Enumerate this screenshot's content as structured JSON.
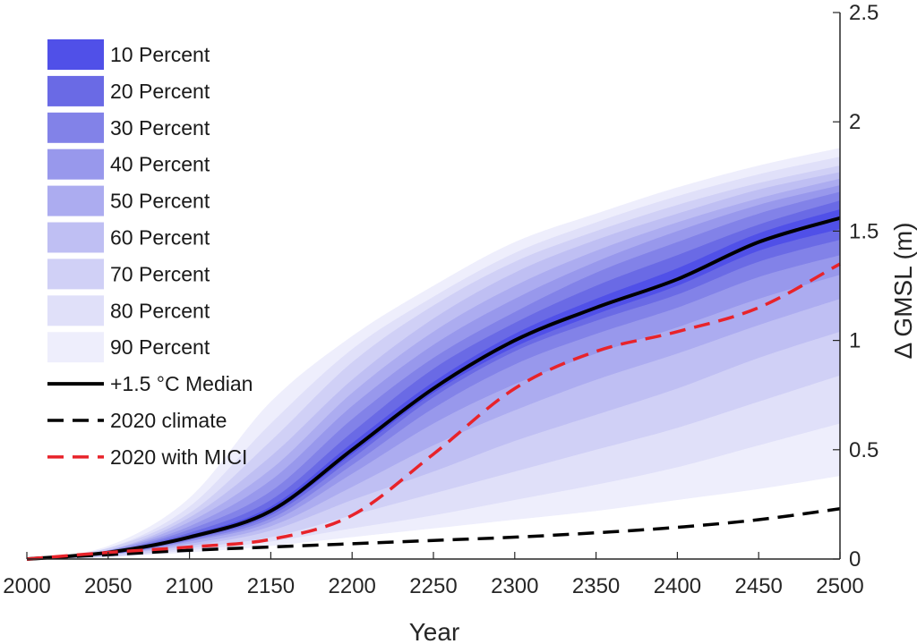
{
  "chart_data": {
    "type": "area",
    "title": "",
    "xlabel": "Year",
    "ylabel": "Δ GMSL (m)",
    "xlim": [
      2000,
      2500
    ],
    "ylim": [
      0,
      2.5
    ],
    "xticks": [
      2000,
      2050,
      2100,
      2150,
      2200,
      2250,
      2300,
      2350,
      2400,
      2450,
      2500
    ],
    "yticks": [
      0,
      0.5,
      1,
      1.5,
      2,
      2.5
    ],
    "ytick_labels": [
      "0",
      "0.5",
      "1",
      "1.5",
      "2",
      "2.5"
    ],
    "y_axis_side": "right",
    "x": [
      2000,
      2050,
      2100,
      2150,
      2200,
      2250,
      2300,
      2350,
      2400,
      2450,
      2500
    ],
    "median": [
      0.0,
      0.03,
      0.1,
      0.22,
      0.5,
      0.78,
      1.0,
      1.15,
      1.28,
      1.45,
      1.56
    ],
    "bands": [
      {
        "label": "90 Percent",
        "color": "#eeeefc",
        "lower": [
          0.0,
          0.01,
          0.03,
          0.06,
          0.1,
          0.14,
          0.18,
          0.22,
          0.27,
          0.32,
          0.38
        ],
        "upper": [
          0.0,
          0.06,
          0.28,
          0.72,
          1.02,
          1.25,
          1.45,
          1.58,
          1.7,
          1.8,
          1.88
        ]
      },
      {
        "label": "80 Percent",
        "color": "#e0e0f9",
        "lower": [
          0.0,
          0.01,
          0.04,
          0.08,
          0.14,
          0.2,
          0.27,
          0.34,
          0.42,
          0.52,
          0.62
        ],
        "upper": [
          0.0,
          0.05,
          0.24,
          0.62,
          0.96,
          1.2,
          1.4,
          1.54,
          1.66,
          1.76,
          1.84
        ]
      },
      {
        "label": "70 Percent",
        "color": "#d0d0f6",
        "lower": [
          0.0,
          0.01,
          0.05,
          0.1,
          0.2,
          0.3,
          0.4,
          0.5,
          0.6,
          0.72,
          0.84
        ],
        "upper": [
          0.0,
          0.05,
          0.21,
          0.54,
          0.9,
          1.16,
          1.36,
          1.5,
          1.62,
          1.72,
          1.8
        ]
      },
      {
        "label": "60 Percent",
        "color": "#bfbff3",
        "lower": [
          0.0,
          0.02,
          0.06,
          0.13,
          0.27,
          0.4,
          0.54,
          0.66,
          0.78,
          0.92,
          1.04
        ],
        "upper": [
          0.0,
          0.04,
          0.19,
          0.47,
          0.82,
          1.1,
          1.31,
          1.46,
          1.58,
          1.69,
          1.77
        ]
      },
      {
        "label": "50 Percent",
        "color": "#acacf0",
        "lower": [
          0.0,
          0.02,
          0.07,
          0.15,
          0.33,
          0.52,
          0.68,
          0.82,
          0.94,
          1.07,
          1.19
        ],
        "upper": [
          0.0,
          0.04,
          0.17,
          0.41,
          0.76,
          1.04,
          1.25,
          1.41,
          1.54,
          1.65,
          1.74
        ]
      },
      {
        "label": "40 Percent",
        "color": "#9898ec",
        "lower": [
          0.0,
          0.02,
          0.08,
          0.17,
          0.39,
          0.62,
          0.8,
          0.94,
          1.06,
          1.19,
          1.3
        ],
        "upper": [
          0.0,
          0.04,
          0.15,
          0.36,
          0.7,
          0.98,
          1.19,
          1.36,
          1.5,
          1.62,
          1.71
        ]
      },
      {
        "label": "30 Percent",
        "color": "#8282e8",
        "lower": [
          0.0,
          0.02,
          0.085,
          0.185,
          0.43,
          0.69,
          0.89,
          1.03,
          1.15,
          1.29,
          1.39
        ],
        "upper": [
          0.0,
          0.035,
          0.135,
          0.31,
          0.64,
          0.92,
          1.13,
          1.31,
          1.45,
          1.58,
          1.68
        ]
      },
      {
        "label": "20 Percent",
        "color": "#6a6ae5",
        "lower": [
          0.0,
          0.025,
          0.09,
          0.2,
          0.46,
          0.74,
          0.95,
          1.09,
          1.21,
          1.36,
          1.46
        ],
        "upper": [
          0.0,
          0.035,
          0.12,
          0.27,
          0.58,
          0.87,
          1.08,
          1.25,
          1.39,
          1.53,
          1.64
        ]
      },
      {
        "label": "10 Percent",
        "color": "#5050e8",
        "lower": [
          0.0,
          0.027,
          0.095,
          0.21,
          0.48,
          0.76,
          0.97,
          1.12,
          1.25,
          1.41,
          1.51
        ],
        "upper": [
          0.0,
          0.033,
          0.11,
          0.24,
          0.53,
          0.81,
          1.03,
          1.19,
          1.33,
          1.49,
          1.6
        ]
      }
    ],
    "series": [
      {
        "name": "+1.5 °C Median",
        "style": "solid",
        "color": "#000000",
        "values": [
          0.0,
          0.03,
          0.1,
          0.22,
          0.5,
          0.78,
          1.0,
          1.15,
          1.28,
          1.45,
          1.56
        ]
      },
      {
        "name": "2020 climate",
        "style": "dashed",
        "color": "#000000",
        "values": [
          0.0,
          0.02,
          0.04,
          0.055,
          0.07,
          0.085,
          0.1,
          0.12,
          0.145,
          0.18,
          0.23
        ]
      },
      {
        "name": "2020 with MICI",
        "style": "dashed",
        "color": "#e8232a",
        "values": [
          0.0,
          0.03,
          0.055,
          0.09,
          0.2,
          0.48,
          0.78,
          0.95,
          1.04,
          1.15,
          1.35
        ]
      }
    ],
    "legend": {
      "position": "top-left",
      "entries": [
        {
          "label": "10 Percent",
          "kind": "patch",
          "color": "#5050e8"
        },
        {
          "label": "20 Percent",
          "kind": "patch",
          "color": "#6a6ae5"
        },
        {
          "label": "30 Percent",
          "kind": "patch",
          "color": "#8282e8"
        },
        {
          "label": "40 Percent",
          "kind": "patch",
          "color": "#9898ec"
        },
        {
          "label": "50 Percent",
          "kind": "patch",
          "color": "#acacf0"
        },
        {
          "label": "60 Percent",
          "kind": "patch",
          "color": "#bfbff3"
        },
        {
          "label": "70 Percent",
          "kind": "patch",
          "color": "#d0d0f6"
        },
        {
          "label": "80 Percent",
          "kind": "patch",
          "color": "#e0e0f9"
        },
        {
          "label": "90 Percent",
          "kind": "patch",
          "color": "#eeeefc"
        },
        {
          "label": "+1.5 °C Median",
          "kind": "solid",
          "color": "#000000"
        },
        {
          "label": "2020 climate",
          "kind": "dashed",
          "color": "#000000"
        },
        {
          "label": "2020 with MICI",
          "kind": "dashed",
          "color": "#e8232a"
        }
      ]
    },
    "grid": false
  }
}
